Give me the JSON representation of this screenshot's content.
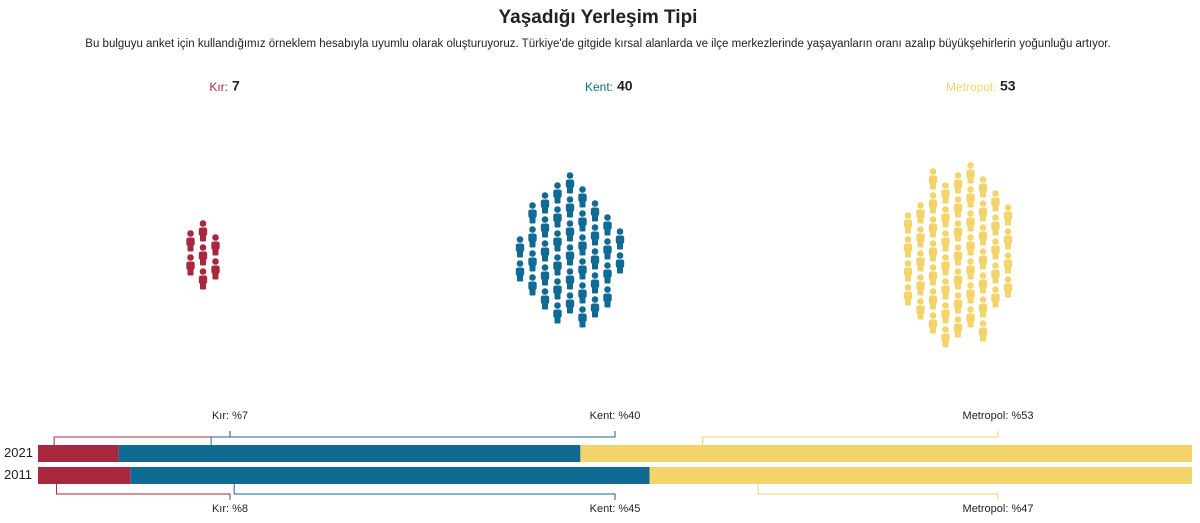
{
  "chart_data": [
    {
      "type": "pictograph",
      "title": "Yaşadığı Yerleşim Tipi",
      "subtitle": "Bu bulguyu anket için kullandığımız örneklem hesabıyla uyumlu olarak oluşturuyoruz. Türkiye'de gitgide kırsal alanlarda ve ilçe merkezlerinde yaşayanların oranı azalıp büyükşehirlerin yoğunluğu artıyor.",
      "categories": [
        "Kır:",
        "Kent:",
        "Metropol:"
      ],
      "values": [
        7,
        40,
        53
      ],
      "colors": [
        "#a8283f",
        "#0f6a94",
        "#f2d46b"
      ]
    },
    {
      "type": "stacked-bar",
      "categories": [
        "2021",
        "2011"
      ],
      "xlim": [
        0,
        100
      ],
      "series": [
        {
          "color": "#a8283f",
          "values": [
            7,
            8
          ],
          "value_labels": [
            "Kır: %7",
            "Kır: %8"
          ]
        },
        {
          "color": "#0f6a94",
          "values": [
            40,
            45
          ],
          "value_labels": [
            "Kent: %40",
            "Kent: %45"
          ]
        },
        {
          "color": "#f2d46b",
          "values": [
            53,
            47
          ],
          "value_labels": [
            "Metropol: %53",
            "Metropol: %47"
          ]
        }
      ]
    }
  ]
}
